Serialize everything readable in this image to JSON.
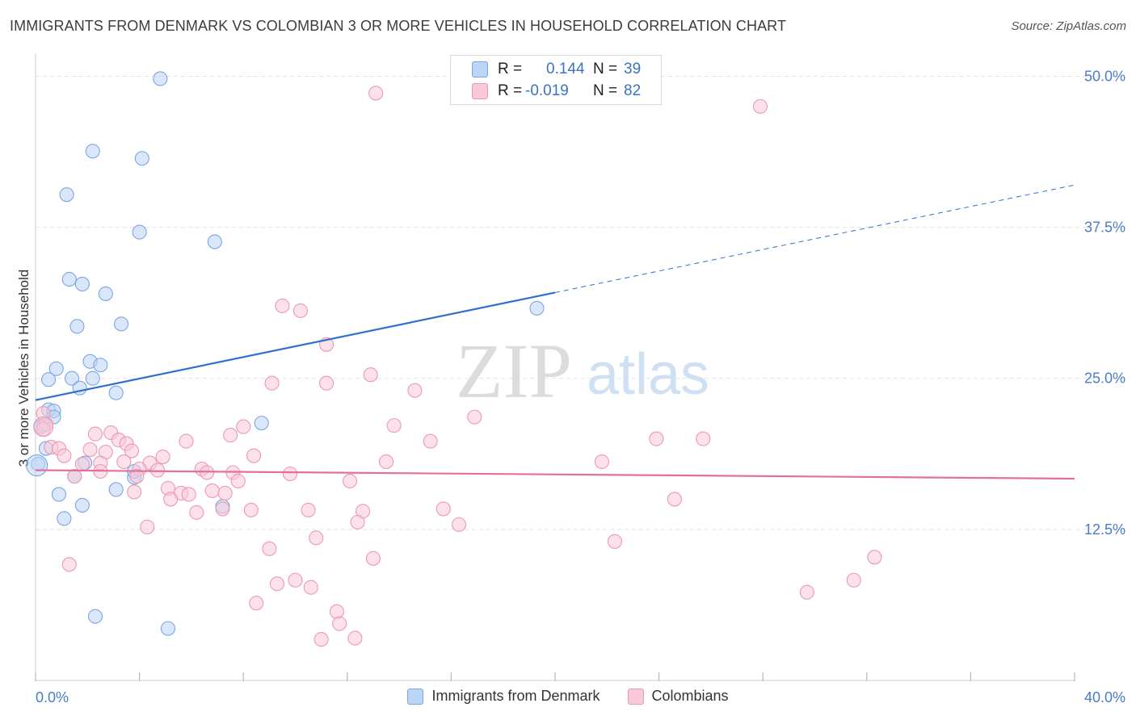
{
  "title": "IMMIGRANTS FROM DENMARK VS COLOMBIAN 3 OR MORE VEHICLES IN HOUSEHOLD CORRELATION CHART",
  "source": "Source: ZipAtlas.com",
  "watermark": {
    "zip": "ZIP",
    "atlas": "atlas"
  },
  "colors": {
    "blue_fill": "#bcd4f5",
    "blue_stroke": "#7aa6e0",
    "blue_line": "#2f6fcf",
    "pink_fill": "#f9c9d9",
    "pink_stroke": "#eb98b6",
    "pink_line": "#e46f98",
    "tick_label": "#4a7cc9",
    "grid": "#e3e3e3"
  },
  "stats": {
    "r_label": "R =",
    "n_label": "N =",
    "blue": {
      "r": "0.144",
      "n": "39"
    },
    "pink": {
      "r": "-0.019",
      "n": "82"
    }
  },
  "chart_data": {
    "type": "scatter",
    "title": "IMMIGRANTS FROM DENMARK VS COLOMBIAN 3 OR MORE VEHICLES IN HOUSEHOLD CORRELATION CHART",
    "xlabel": "",
    "ylabel": "3 or more Vehicles in Household",
    "xlim": [
      0,
      40
    ],
    "ylim": [
      0,
      51.5
    ],
    "x_tick_labels": [
      "0.0%",
      "40.0%"
    ],
    "y_ticks": [
      12.5,
      25.0,
      37.5,
      50.0
    ],
    "y_tick_labels": [
      "12.5%",
      "25.0%",
      "37.5%",
      "50.0%"
    ],
    "legend_position": "bottom-center",
    "grid": true,
    "series": [
      {
        "name": "Immigrants from Denmark",
        "color": "blue",
        "r": 0.144,
        "n": 39,
        "trend": {
          "x_start": 0,
          "y_start": 23.2,
          "x_solid_end": 20,
          "y_solid_end": 32.1,
          "x_end": 40,
          "y_end": 41.0
        },
        "points": [
          {
            "x": 4.8,
            "y": 49.8
          },
          {
            "x": 2.2,
            "y": 43.8
          },
          {
            "x": 4.1,
            "y": 43.2
          },
          {
            "x": 1.2,
            "y": 40.2
          },
          {
            "x": 4.0,
            "y": 37.1
          },
          {
            "x": 6.9,
            "y": 36.3
          },
          {
            "x": 1.3,
            "y": 33.2
          },
          {
            "x": 1.8,
            "y": 32.8
          },
          {
            "x": 2.7,
            "y": 32.0
          },
          {
            "x": 3.3,
            "y": 29.5
          },
          {
            "x": 1.6,
            "y": 29.3
          },
          {
            "x": 19.3,
            "y": 30.8
          },
          {
            "x": 2.1,
            "y": 26.4
          },
          {
            "x": 2.5,
            "y": 26.1
          },
          {
            "x": 0.8,
            "y": 25.8
          },
          {
            "x": 0.5,
            "y": 24.9
          },
          {
            "x": 1.4,
            "y": 25.0
          },
          {
            "x": 2.2,
            "y": 25.0
          },
          {
            "x": 1.7,
            "y": 24.2
          },
          {
            "x": 3.1,
            "y": 23.8
          },
          {
            "x": 0.5,
            "y": 22.4
          },
          {
            "x": 0.7,
            "y": 22.3
          },
          {
            "x": 0.7,
            "y": 21.8
          },
          {
            "x": 0.3,
            "y": 21.1
          },
          {
            "x": 8.7,
            "y": 21.3
          },
          {
            "x": 0.4,
            "y": 19.2
          },
          {
            "x": 0.1,
            "y": 17.9
          },
          {
            "x": 1.9,
            "y": 18.0
          },
          {
            "x": 1.5,
            "y": 16.9
          },
          {
            "x": 3.8,
            "y": 16.8
          },
          {
            "x": 3.8,
            "y": 17.3
          },
          {
            "x": 3.1,
            "y": 15.8
          },
          {
            "x": 0.9,
            "y": 15.4
          },
          {
            "x": 1.8,
            "y": 14.5
          },
          {
            "x": 7.2,
            "y": 14.4
          },
          {
            "x": 1.1,
            "y": 13.4
          },
          {
            "x": 2.3,
            "y": 5.3
          },
          {
            "x": 5.1,
            "y": 4.3
          },
          {
            "x": 0.2,
            "y": 21.0
          }
        ]
      },
      {
        "name": "Colombians",
        "color": "pink",
        "r": -0.019,
        "n": 82,
        "trend": {
          "x_start": 0,
          "y_start": 17.4,
          "x_end": 40,
          "y_end": 16.7
        },
        "points": [
          {
            "x": 13.1,
            "y": 48.6
          },
          {
            "x": 27.9,
            "y": 47.5
          },
          {
            "x": 9.5,
            "y": 31.0
          },
          {
            "x": 10.2,
            "y": 30.6
          },
          {
            "x": 11.2,
            "y": 27.8
          },
          {
            "x": 12.9,
            "y": 25.3
          },
          {
            "x": 9.1,
            "y": 24.6
          },
          {
            "x": 11.2,
            "y": 24.6
          },
          {
            "x": 14.6,
            "y": 24.0
          },
          {
            "x": 0.3,
            "y": 22.1
          },
          {
            "x": 0.4,
            "y": 21.2
          },
          {
            "x": 0.3,
            "y": 20.8
          },
          {
            "x": 13.8,
            "y": 21.1
          },
          {
            "x": 16.9,
            "y": 21.8
          },
          {
            "x": 8.0,
            "y": 21.0
          },
          {
            "x": 2.3,
            "y": 20.4
          },
          {
            "x": 2.9,
            "y": 20.5
          },
          {
            "x": 3.2,
            "y": 19.9
          },
          {
            "x": 3.5,
            "y": 19.6
          },
          {
            "x": 5.8,
            "y": 19.8
          },
          {
            "x": 7.5,
            "y": 20.3
          },
          {
            "x": 15.2,
            "y": 19.8
          },
          {
            "x": 23.9,
            "y": 20.0
          },
          {
            "x": 25.7,
            "y": 20.0
          },
          {
            "x": 0.6,
            "y": 19.3
          },
          {
            "x": 0.9,
            "y": 19.2
          },
          {
            "x": 2.1,
            "y": 19.1
          },
          {
            "x": 2.7,
            "y": 18.9
          },
          {
            "x": 3.7,
            "y": 19.0
          },
          {
            "x": 1.1,
            "y": 18.6
          },
          {
            "x": 4.9,
            "y": 18.5
          },
          {
            "x": 3.4,
            "y": 18.1
          },
          {
            "x": 8.4,
            "y": 18.6
          },
          {
            "x": 13.5,
            "y": 18.1
          },
          {
            "x": 21.8,
            "y": 18.1
          },
          {
            "x": 1.8,
            "y": 17.9
          },
          {
            "x": 2.5,
            "y": 18.0
          },
          {
            "x": 4.4,
            "y": 18.0
          },
          {
            "x": 4.0,
            "y": 17.5
          },
          {
            "x": 4.7,
            "y": 17.4
          },
          {
            "x": 2.5,
            "y": 17.3
          },
          {
            "x": 6.4,
            "y": 17.5
          },
          {
            "x": 6.6,
            "y": 17.2
          },
          {
            "x": 7.6,
            "y": 17.2
          },
          {
            "x": 9.8,
            "y": 17.1
          },
          {
            "x": 1.5,
            "y": 16.9
          },
          {
            "x": 3.9,
            "y": 16.9
          },
          {
            "x": 7.8,
            "y": 16.5
          },
          {
            "x": 12.1,
            "y": 16.5
          },
          {
            "x": 5.1,
            "y": 15.9
          },
          {
            "x": 3.8,
            "y": 15.6
          },
          {
            "x": 5.6,
            "y": 15.5
          },
          {
            "x": 5.9,
            "y": 15.4
          },
          {
            "x": 6.8,
            "y": 15.7
          },
          {
            "x": 7.3,
            "y": 15.5
          },
          {
            "x": 5.2,
            "y": 15.0
          },
          {
            "x": 24.6,
            "y": 15.0
          },
          {
            "x": 7.2,
            "y": 14.2
          },
          {
            "x": 8.3,
            "y": 14.1
          },
          {
            "x": 10.5,
            "y": 14.1
          },
          {
            "x": 12.6,
            "y": 14.0
          },
          {
            "x": 15.7,
            "y": 14.2
          },
          {
            "x": 6.2,
            "y": 13.9
          },
          {
            "x": 12.4,
            "y": 13.1
          },
          {
            "x": 16.3,
            "y": 12.9
          },
          {
            "x": 4.3,
            "y": 12.7
          },
          {
            "x": 10.8,
            "y": 11.8
          },
          {
            "x": 22.3,
            "y": 11.5
          },
          {
            "x": 9.0,
            "y": 10.9
          },
          {
            "x": 13.0,
            "y": 10.1
          },
          {
            "x": 32.3,
            "y": 10.2
          },
          {
            "x": 1.3,
            "y": 9.6
          },
          {
            "x": 9.3,
            "y": 8.0
          },
          {
            "x": 10.0,
            "y": 8.3
          },
          {
            "x": 10.6,
            "y": 7.7
          },
          {
            "x": 31.5,
            "y": 8.3
          },
          {
            "x": 29.7,
            "y": 7.3
          },
          {
            "x": 8.5,
            "y": 6.4
          },
          {
            "x": 11.6,
            "y": 5.7
          },
          {
            "x": 11.7,
            "y": 4.7
          },
          {
            "x": 11.0,
            "y": 3.4
          },
          {
            "x": 12.3,
            "y": 3.5
          }
        ]
      }
    ]
  }
}
